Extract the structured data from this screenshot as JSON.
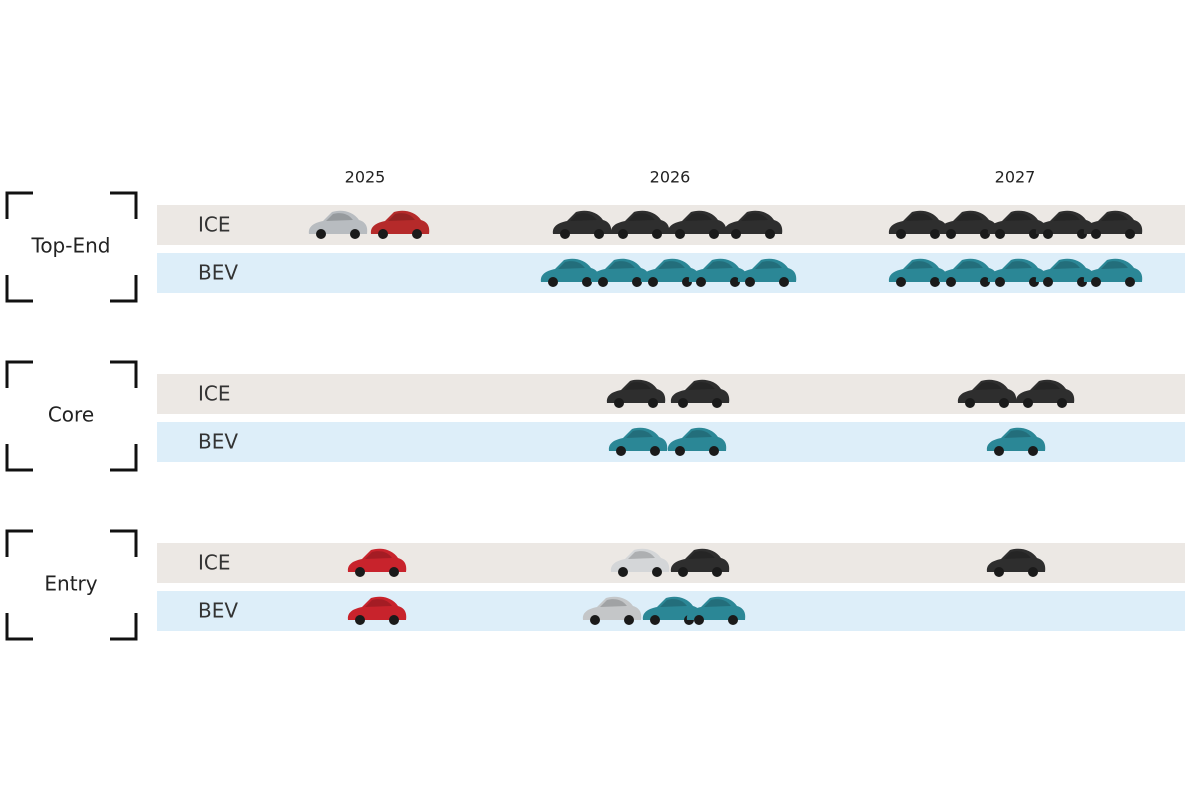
{
  "header": {
    "years": [
      "2025",
      "2026",
      "2027"
    ]
  },
  "segments": [
    {
      "label": "Top-End",
      "rows": [
        "ICE",
        "BEV"
      ]
    },
    {
      "label": "Core",
      "rows": [
        "ICE",
        "BEV"
      ]
    },
    {
      "label": "Entry",
      "rows": [
        "ICE",
        "BEV"
      ]
    }
  ]
}
